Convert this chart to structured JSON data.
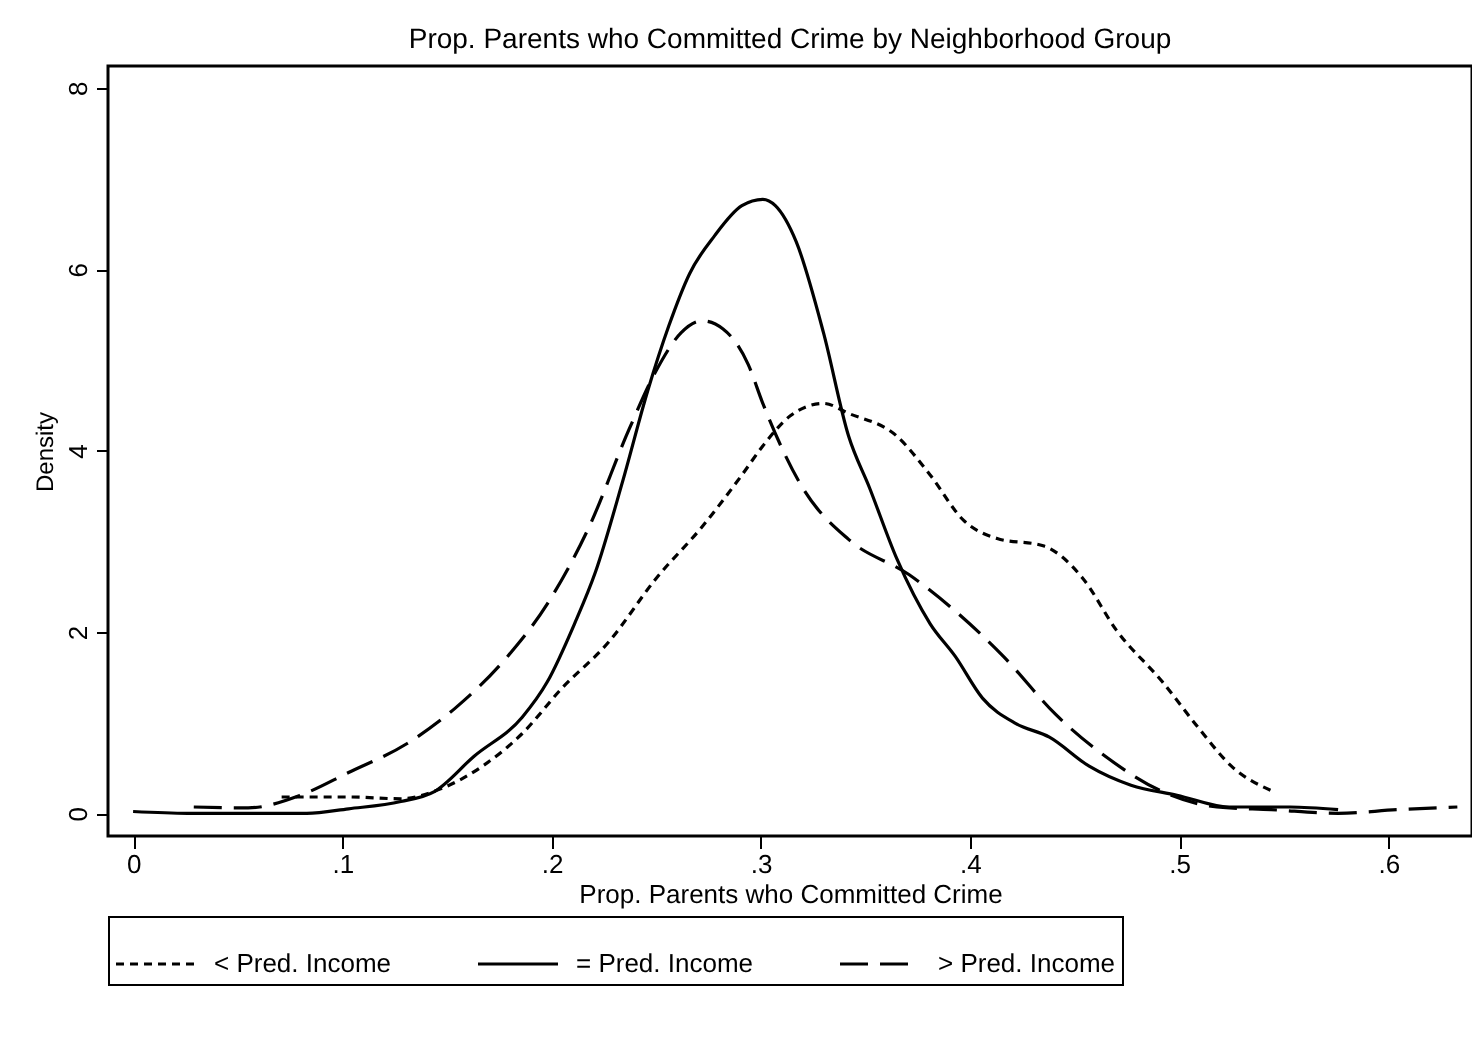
{
  "chart_data": {
    "type": "line",
    "title": "Prop. Parents who Committed Crime by Neighborhood Group",
    "xlabel": "Prop. Parents who Committed Crime",
    "ylabel": "Density",
    "xlim": [
      -0.012,
      0.64
    ],
    "ylim": [
      -0.25,
      8.24
    ],
    "xticks": [
      {
        "value": 0,
        "label": "0"
      },
      {
        "value": 0.1,
        "label": ".1"
      },
      {
        "value": 0.2,
        "label": ".2"
      },
      {
        "value": 0.3,
        "label": ".3"
      },
      {
        "value": 0.4,
        "label": ".4"
      },
      {
        "value": 0.5,
        "label": ".5"
      },
      {
        "value": 0.6,
        "label": ".6"
      }
    ],
    "yticks": [
      0,
      2,
      4,
      6,
      8
    ],
    "grid": false,
    "legend": "bottom",
    "series": [
      {
        "name": "< Pred. Income",
        "color": "#000000",
        "line_style": "dotted",
        "x": [
          0.071,
          0.103,
          0.128,
          0.147,
          0.167,
          0.186,
          0.205,
          0.227,
          0.25,
          0.272,
          0.291,
          0.301,
          0.314,
          0.33,
          0.342,
          0.365,
          0.381,
          0.397,
          0.413,
          0.435,
          0.454,
          0.47,
          0.492,
          0.509,
          0.525,
          0.545
        ],
        "values": [
          0.18,
          0.18,
          0.16,
          0.27,
          0.52,
          0.88,
          1.38,
          1.88,
          2.59,
          3.16,
          3.73,
          4.05,
          4.38,
          4.52,
          4.41,
          4.16,
          3.73,
          3.23,
          3.03,
          2.95,
          2.59,
          2.02,
          1.45,
          0.95,
          0.52,
          0.24
        ]
      },
      {
        "name": "= Pred. Income",
        "color": "#000000",
        "line_style": "solid",
        "x": [
          0,
          0.026,
          0.083,
          0.103,
          0.128,
          0.144,
          0.163,
          0.186,
          0.198,
          0.211,
          0.221,
          0.234,
          0.246,
          0.256,
          0.266,
          0.278,
          0.291,
          0.301,
          0.307,
          0.317,
          0.33,
          0.342,
          0.352,
          0.365,
          0.381,
          0.393,
          0.406,
          0.422,
          0.438,
          0.457,
          0.477,
          0.499,
          0.524,
          0.553,
          0.576
        ],
        "values": [
          0.02,
          0,
          0,
          0.05,
          0.13,
          0.24,
          0.63,
          1.06,
          1.45,
          2.09,
          2.66,
          3.66,
          4.66,
          5.37,
          5.95,
          6.37,
          6.7,
          6.77,
          6.7,
          6.3,
          5.3,
          4.16,
          3.59,
          2.81,
          2.09,
          1.73,
          1.27,
          0.99,
          0.84,
          0.52,
          0.31,
          0.2,
          0.07,
          0.07,
          0.04
        ]
      },
      {
        "name": "> Pred. Income",
        "color": "#000000",
        "line_style": "dashed",
        "x": [
          0.029,
          0.055,
          0.08,
          0.103,
          0.131,
          0.154,
          0.179,
          0.198,
          0.218,
          0.237,
          0.25,
          0.262,
          0.272,
          0.282,
          0.294,
          0.301,
          0.32,
          0.342,
          0.371,
          0.393,
          0.416,
          0.441,
          0.467,
          0.492,
          0.518,
          0.544,
          0.576,
          0.604,
          0.633
        ],
        "values": [
          0.07,
          0.06,
          0.2,
          0.45,
          0.77,
          1.16,
          1.73,
          2.31,
          3.16,
          4.23,
          4.88,
          5.3,
          5.43,
          5.34,
          4.95,
          4.52,
          3.59,
          3.02,
          2.63,
          2.23,
          1.73,
          1.09,
          0.59,
          0.24,
          0.07,
          0.04,
          0,
          0.04,
          0.07
        ]
      }
    ]
  }
}
